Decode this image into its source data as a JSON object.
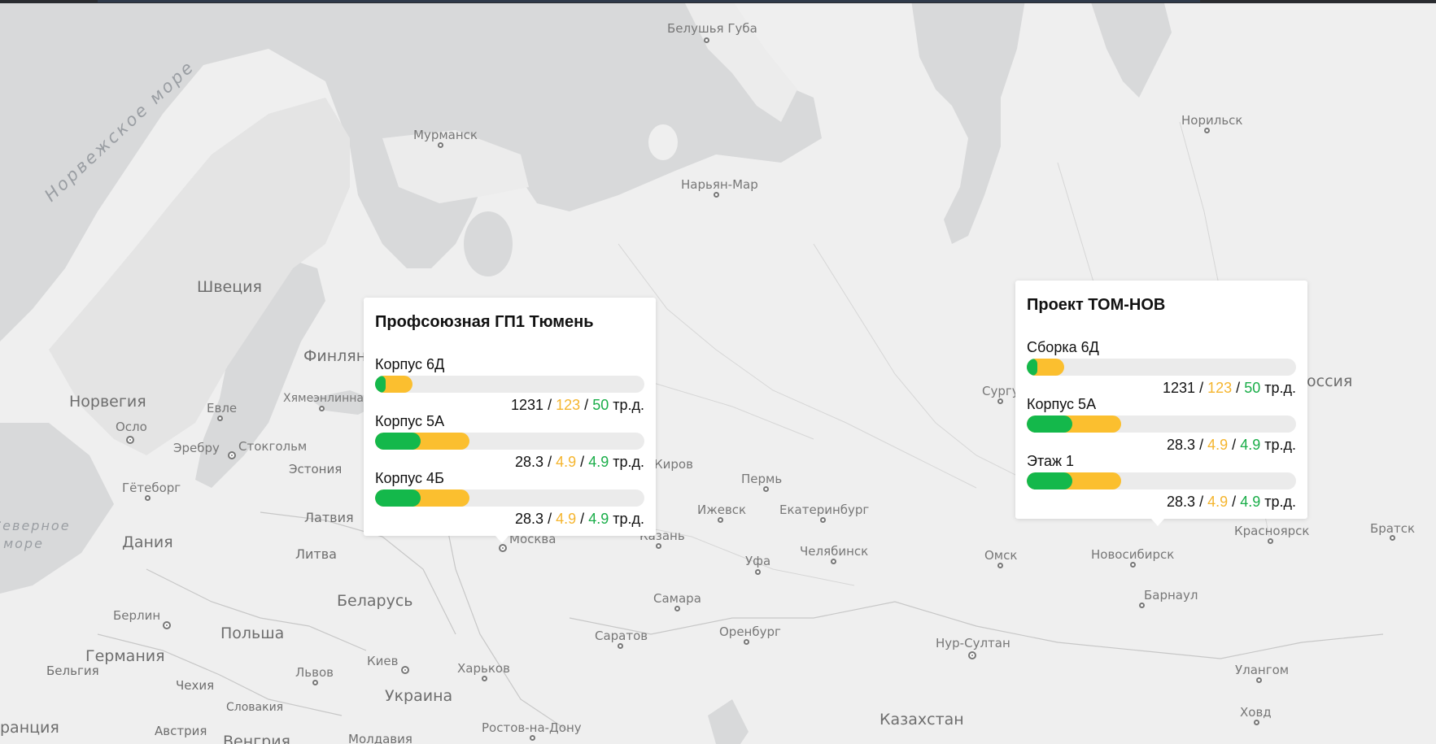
{
  "map": {
    "seas": [
      {
        "id": "norwegian-sea",
        "label": "Норвежское море"
      },
      {
        "id": "north-sea",
        "label": "Северное море"
      }
    ],
    "countries": [
      {
        "id": "sweden",
        "label": "Швеция"
      },
      {
        "id": "finland",
        "label": "Финлянд"
      },
      {
        "id": "norway",
        "label": "Норвегия"
      },
      {
        "id": "estonia",
        "label": "Эстония"
      },
      {
        "id": "latvia",
        "label": "Латвия"
      },
      {
        "id": "lithuania",
        "label": "Литва"
      },
      {
        "id": "denmark",
        "label": "Дания"
      },
      {
        "id": "belarus",
        "label": "Беларусь"
      },
      {
        "id": "poland",
        "label": "Польша"
      },
      {
        "id": "germany",
        "label": "Германия"
      },
      {
        "id": "belgium",
        "label": "Бельгия"
      },
      {
        "id": "czechia",
        "label": "Чехия"
      },
      {
        "id": "slovakia",
        "label": "Словакия"
      },
      {
        "id": "austria",
        "label": "Австрия"
      },
      {
        "id": "hungary",
        "label": "Венгрия"
      },
      {
        "id": "moldova",
        "label": "Молдавия"
      },
      {
        "id": "france",
        "label": "ранция"
      },
      {
        "id": "ukraine",
        "label": "Украина"
      },
      {
        "id": "kazakhstan",
        "label": "Казахстан"
      },
      {
        "id": "russia",
        "label": "оссия"
      }
    ],
    "cities": [
      {
        "id": "belushya-guba",
        "label": "Белушья Губа"
      },
      {
        "id": "murmansk",
        "label": "Мурманск"
      },
      {
        "id": "naryan-mar",
        "label": "Нарьян-Мар"
      },
      {
        "id": "norilsk",
        "label": "Норильск"
      },
      {
        "id": "yevle",
        "label": "Евле"
      },
      {
        "id": "hameenlinna",
        "label": "Хямеэнлинна"
      },
      {
        "id": "oslo",
        "label": "Осло"
      },
      {
        "id": "orebro",
        "label": "Эребру"
      },
      {
        "id": "stockholm",
        "label": "Стокгольм"
      },
      {
        "id": "goteborg",
        "label": "Гётеборг"
      },
      {
        "id": "kirov",
        "label": "Киров"
      },
      {
        "id": "perm",
        "label": "Пермь"
      },
      {
        "id": "izhevsk",
        "label": "Ижевск"
      },
      {
        "id": "yekaterinburg",
        "label": "Екатеринбург"
      },
      {
        "id": "surgut",
        "label": "Сургу"
      },
      {
        "id": "moscow",
        "label": "Москва"
      },
      {
        "id": "kazan",
        "label": "Казань"
      },
      {
        "id": "ufa",
        "label": "Уфа"
      },
      {
        "id": "chelyabinsk",
        "label": "Челябинск"
      },
      {
        "id": "omsk",
        "label": "Омск"
      },
      {
        "id": "novosibirsk",
        "label": "Новосибирск"
      },
      {
        "id": "krasnoyarsk",
        "label": "Красноярск"
      },
      {
        "id": "bratsk",
        "label": "Братск"
      },
      {
        "id": "berlin",
        "label": "Берлин"
      },
      {
        "id": "samara",
        "label": "Самара"
      },
      {
        "id": "saratov",
        "label": "Саратов"
      },
      {
        "id": "orenburg",
        "label": "Оренбург"
      },
      {
        "id": "barnaul",
        "label": "Барнаул"
      },
      {
        "id": "kiev",
        "label": "Киев"
      },
      {
        "id": "lvov",
        "label": "Львов"
      },
      {
        "id": "kharkov",
        "label": "Харьков"
      },
      {
        "id": "nur-sultan",
        "label": "Нур-Султан"
      },
      {
        "id": "ulangom",
        "label": "Улангом"
      },
      {
        "id": "khovd",
        "label": "Ховд"
      },
      {
        "id": "rostov",
        "label": "Ростов-на-Дону"
      }
    ]
  },
  "colors": {
    "green": "#14b84b",
    "yellow": "#fbbf2f",
    "track": "#ebebeb",
    "water": "#d9dadb",
    "land": "#efefef"
  },
  "popups": [
    {
      "title": "Профсоюзная ГП1 Тюмень",
      "rows": [
        {
          "label": "Корпус 6Д",
          "total": "1231",
          "yellow": "123",
          "green": "50",
          "unit": "тр.д.",
          "sep": "/",
          "green_fraction": 0.04,
          "yellow_fraction": 0.14
        },
        {
          "label": "Корпус 5А",
          "total": "28.3",
          "yellow": "4.9",
          "green": "4.9",
          "unit": "тр.д.",
          "sep": "/",
          "green_fraction": 0.17,
          "yellow_fraction": 0.35
        },
        {
          "label": "Корпус 4Б",
          "total": "28.3",
          "yellow": "4.9",
          "green": "4.9",
          "unit": "тр.д.",
          "sep": "/",
          "green_fraction": 0.17,
          "yellow_fraction": 0.35
        }
      ]
    },
    {
      "title": "Проект ТОМ-НОВ",
      "rows": [
        {
          "label": "Сборка 6Д",
          "total": "1231",
          "yellow": "123",
          "green": "50",
          "unit": "тр.д.",
          "sep": "/",
          "green_fraction": 0.04,
          "yellow_fraction": 0.14
        },
        {
          "label": "Корпус 5А",
          "total": "28.3",
          "yellow": "4.9",
          "green": "4.9",
          "unit": "тр.д.",
          "sep": "/",
          "green_fraction": 0.17,
          "yellow_fraction": 0.35
        },
        {
          "label": "Этаж 1",
          "total": "28.3",
          "yellow": "4.9",
          "green": "4.9",
          "unit": "тр.д.",
          "sep": "/",
          "green_fraction": 0.17,
          "yellow_fraction": 0.35
        }
      ]
    }
  ]
}
